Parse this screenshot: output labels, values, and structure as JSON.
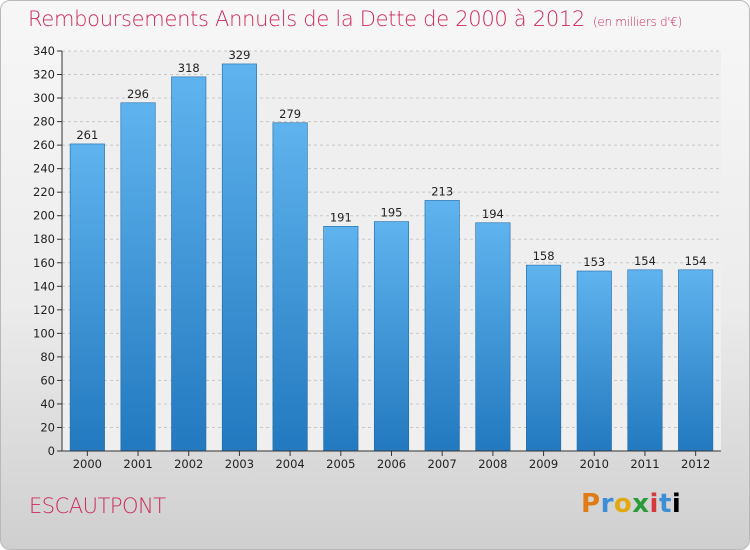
{
  "header": {
    "title": "Remboursements Annuels de la Dette de 2000 à 2012",
    "subtitle": "(en milliers d'€)"
  },
  "footer": {
    "place": "ESCAUTPONT",
    "logo_letters": [
      "P",
      "r",
      "o",
      "x",
      "i",
      "t",
      "i"
    ]
  },
  "colors": {
    "title": "#cc2a5a",
    "bar_top": "#5fb3ee",
    "bar_bottom": "#2379bf"
  },
  "chart_data": {
    "type": "bar",
    "categories": [
      "2000",
      "2001",
      "2002",
      "2003",
      "2004",
      "2005",
      "2006",
      "2007",
      "2008",
      "2009",
      "2010",
      "2011",
      "2012"
    ],
    "values": [
      261,
      296,
      318,
      329,
      279,
      191,
      195,
      213,
      194,
      158,
      153,
      154,
      154
    ],
    "ylim": [
      0,
      340
    ],
    "yticks": [
      0,
      20,
      40,
      60,
      80,
      100,
      120,
      140,
      160,
      180,
      200,
      220,
      240,
      260,
      280,
      300,
      320,
      340
    ],
    "grid": true
  }
}
